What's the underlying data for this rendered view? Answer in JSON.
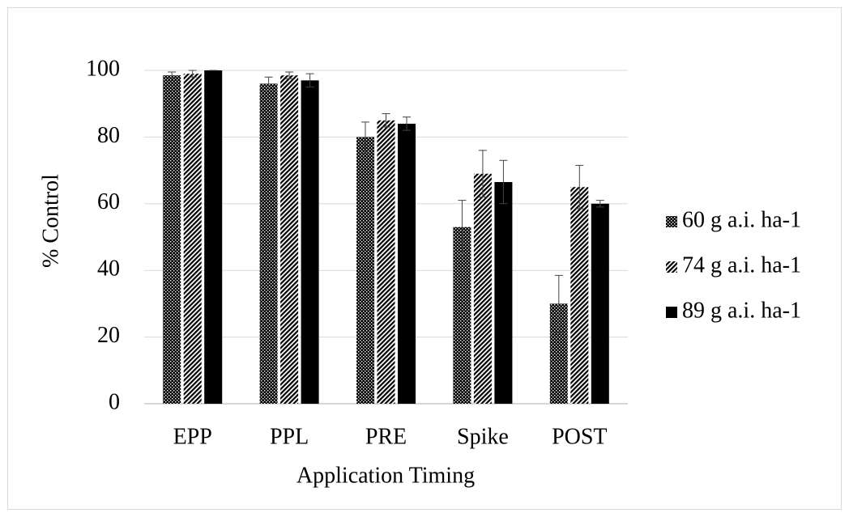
{
  "chart_data": {
    "type": "bar",
    "y_label": "% Control",
    "x_label": "Application Timing",
    "categories": [
      "EPP",
      "PPL",
      "PRE",
      "Spike",
      "POST"
    ],
    "series": [
      {
        "name": "60 g a.i. ha-1",
        "color": "#000000",
        "pattern": "dots",
        "values": [
          98.5,
          96,
          80,
          53,
          30
        ],
        "errors": [
          1,
          2,
          4.5,
          8,
          8.5
        ]
      },
      {
        "name": "74 g a.i. ha-1",
        "color": "#000000",
        "pattern": "stripes",
        "values": [
          99,
          98.5,
          85,
          69,
          65
        ],
        "errors": [
          1,
          1,
          2,
          7,
          6.5
        ]
      },
      {
        "name": "89 g a.i. ha-1",
        "color": "#000000",
        "pattern": "solid",
        "values": [
          100,
          97,
          84,
          66.5,
          60
        ],
        "errors": [
          0,
          2,
          2,
          6.5,
          1
        ]
      }
    ],
    "ylim": [
      0,
      100
    ],
    "yticks": [
      0,
      20,
      40,
      60,
      80,
      100
    ],
    "grid": true,
    "legend": "right"
  }
}
